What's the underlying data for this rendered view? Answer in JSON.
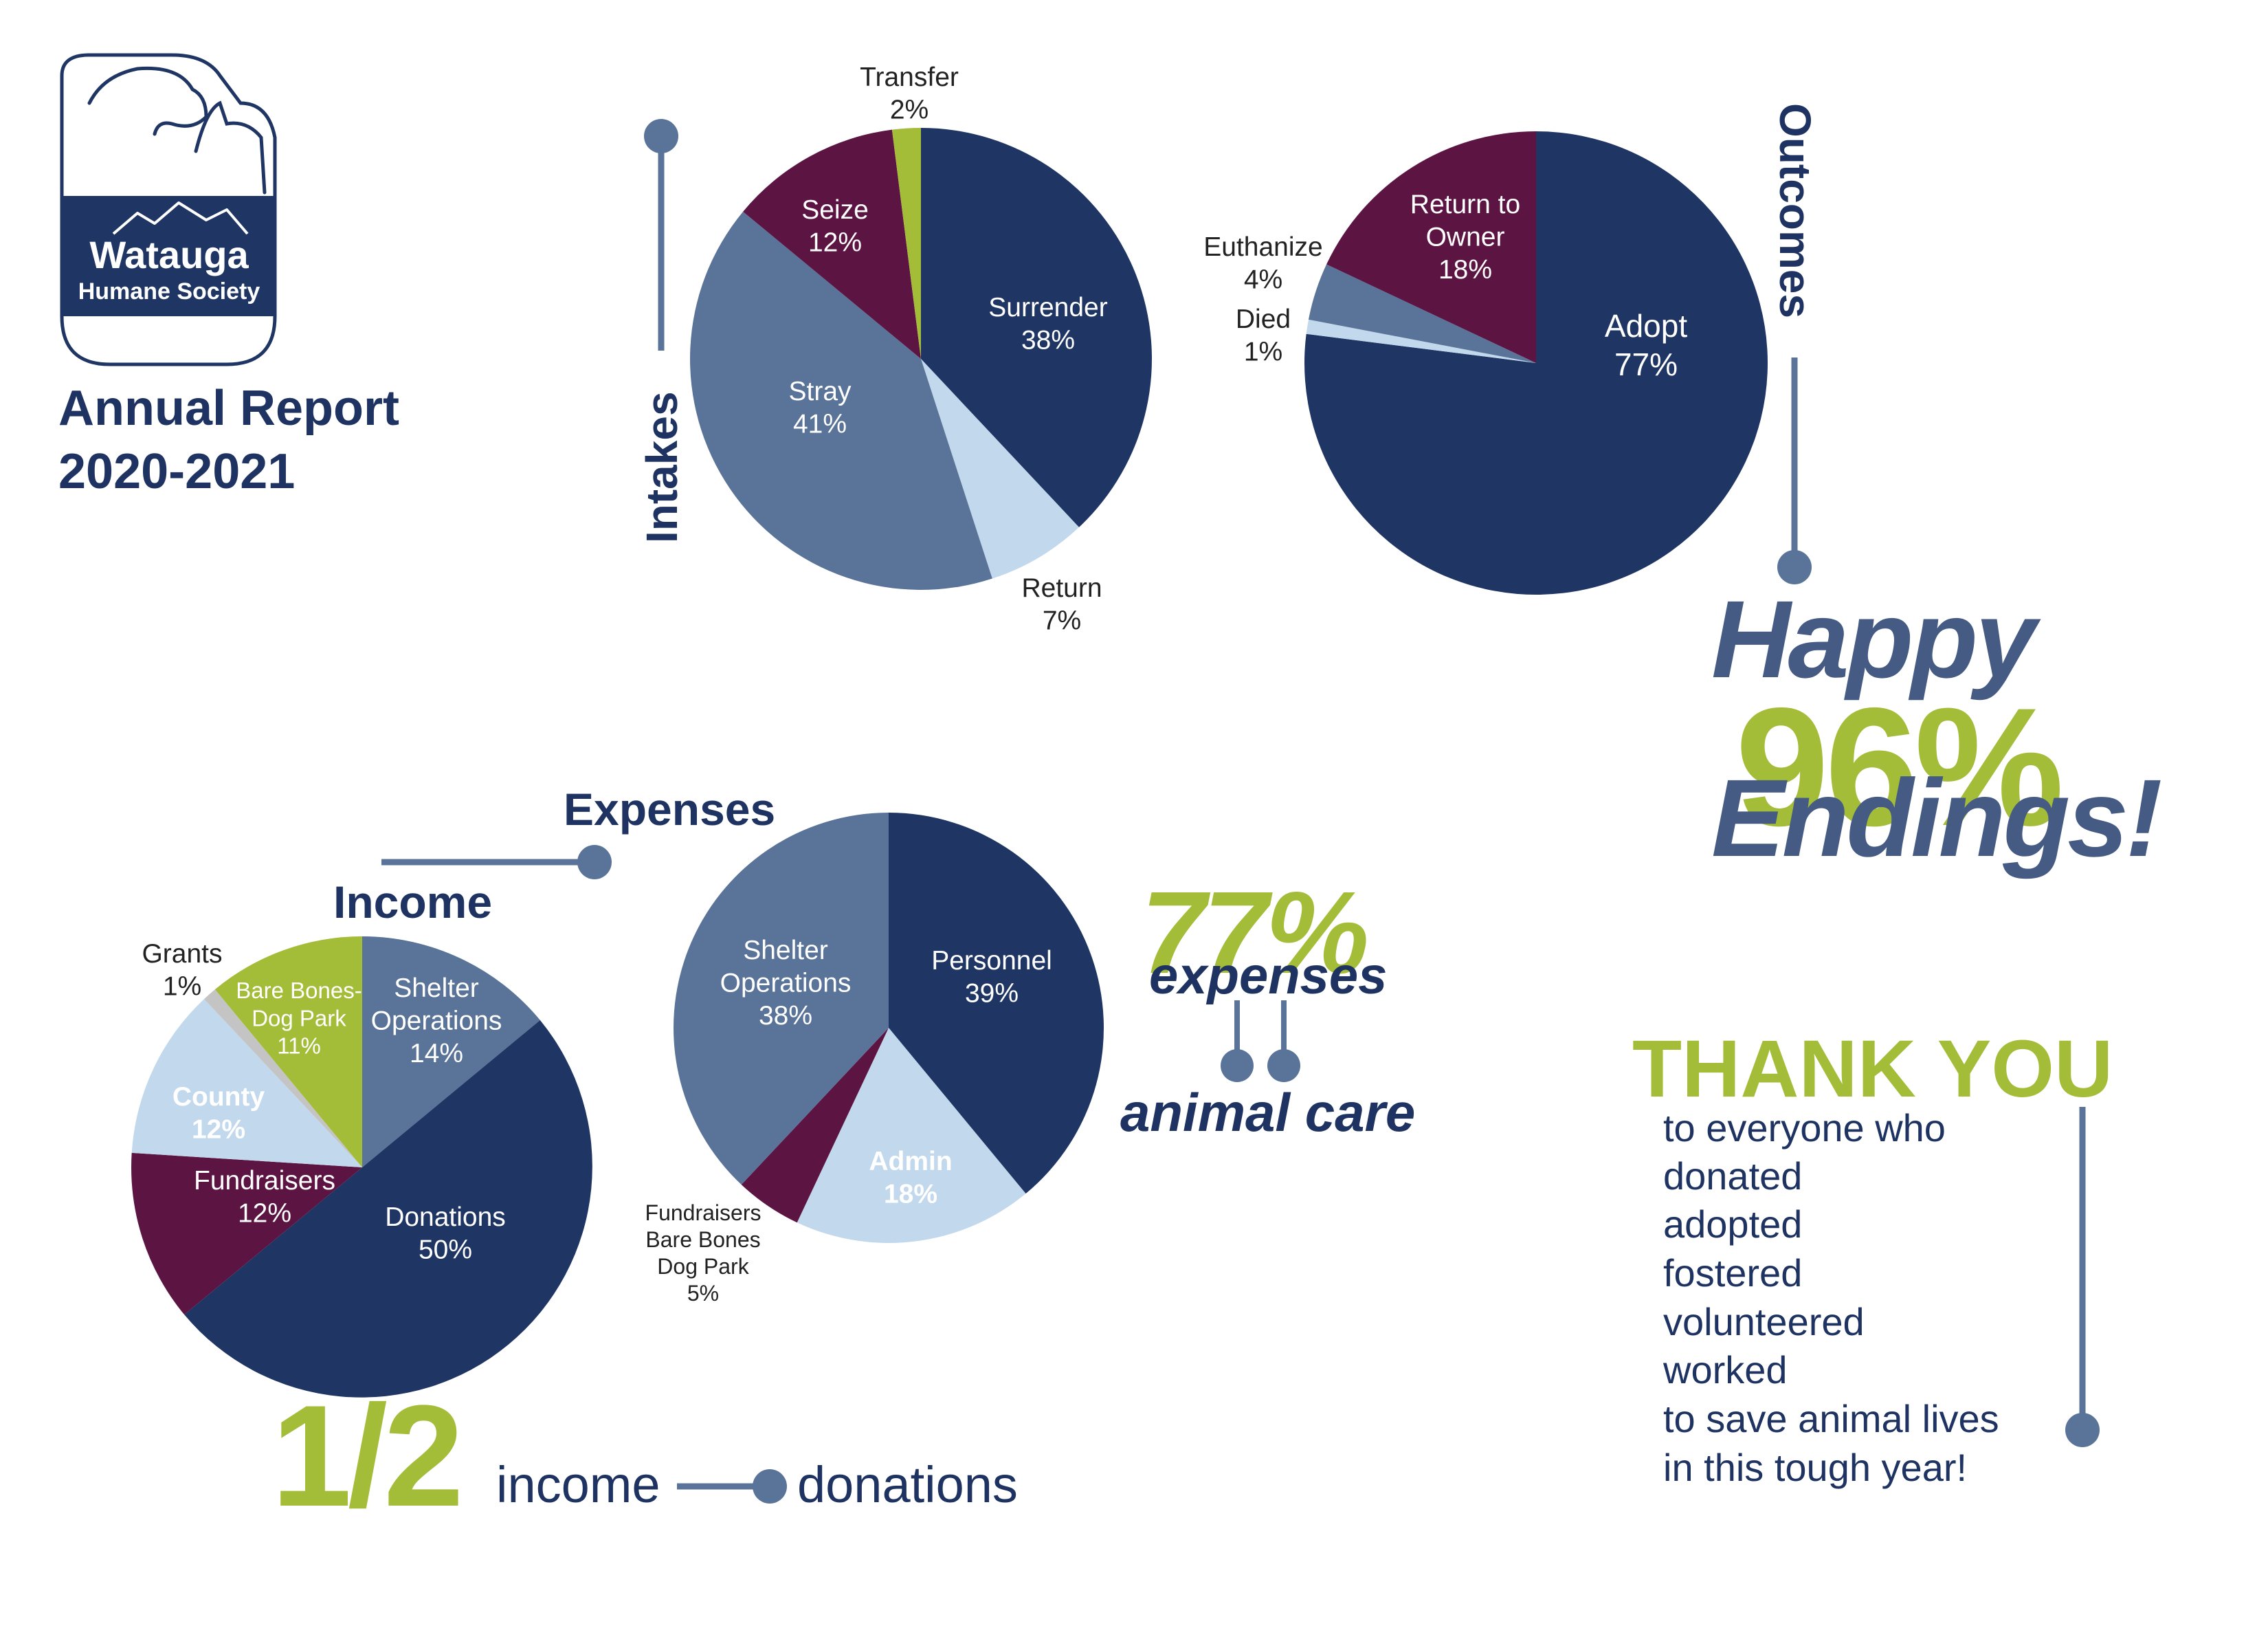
{
  "colors": {
    "navy": "#1f3564",
    "slate": "#5a7398",
    "light": "#c2d8ec",
    "maroon": "#5c1443",
    "green": "#a4bd38",
    "gray": "#c4c4c4",
    "line": "#5a7398"
  },
  "logo": {
    "line1": "Watauga",
    "line2": "Humane Society"
  },
  "report": {
    "line1": "Annual Report",
    "line2": "2020-2021"
  },
  "highlights": {
    "happy": "Happy",
    "pct96": "96%",
    "endings": "Endings!",
    "pct77": "77%",
    "expenses": "expenses",
    "animal_care": "animal care",
    "half": "1/2",
    "income": "income",
    "donations": "donations"
  },
  "thank_you": {
    "title": "THANK YOU",
    "lines": [
      "to everyone who",
      "donated",
      "adopted",
      "fostered",
      "volunteered",
      "worked",
      "to save animal lives",
      "in this tough year!"
    ]
  },
  "chart_data": [
    {
      "type": "pie",
      "title": "Intakes",
      "slices": [
        {
          "name": "Surrender",
          "pct": "38%",
          "value": 38,
          "color": "#1f3564",
          "label_color": "#ffffff"
        },
        {
          "name": "Return",
          "pct": "7%",
          "value": 7,
          "color": "#c2d8ec",
          "label_color": "#222222"
        },
        {
          "name": "Stray",
          "pct": "41%",
          "value": 41,
          "color": "#5a7398",
          "label_color": "#ffffff"
        },
        {
          "name": "Seize",
          "pct": "12%",
          "value": 12,
          "color": "#5c1443",
          "label_color": "#ffffff"
        },
        {
          "name": "Transfer",
          "pct": "2%",
          "value": 2,
          "color": "#a4bd38",
          "label_color": "#222222"
        }
      ]
    },
    {
      "type": "pie",
      "title": "Outcomes",
      "slices": [
        {
          "name": "Adopt",
          "pct": "77%",
          "value": 77,
          "color": "#1f3564",
          "label_color": "#ffffff"
        },
        {
          "name": "Died",
          "pct": "1%",
          "value": 1,
          "color": "#c2d8ec",
          "label_color": "#222222"
        },
        {
          "name": "Euthanize",
          "pct": "4%",
          "value": 4,
          "color": "#5a7398",
          "label_color": "#222222"
        },
        {
          "name": "Return to Owner",
          "pct": "18%",
          "value": 18,
          "color": "#5c1443",
          "label_color": "#ffffff"
        }
      ]
    },
    {
      "type": "pie",
      "title": "Income",
      "slices": [
        {
          "name": "Shelter Operations",
          "pct": "14%",
          "value": 14,
          "color": "#5a7398",
          "label_color": "#ffffff"
        },
        {
          "name": "Donations",
          "pct": "50%",
          "value": 50,
          "color": "#1f3564",
          "label_color": "#ffffff"
        },
        {
          "name": "Fundraisers",
          "pct": "12%",
          "value": 12,
          "color": "#5c1443",
          "label_color": "#ffffff"
        },
        {
          "name": "County",
          "pct": "12%",
          "value": 12,
          "color": "#c2d8ec",
          "label_color": "#ffffff"
        },
        {
          "name": "Grants",
          "pct": "1%",
          "value": 1,
          "color": "#c4c4c4",
          "label_color": "#222222"
        },
        {
          "name": "Bare Bones-Dog Park",
          "pct": "11%",
          "value": 11,
          "color": "#a4bd38",
          "label_color": "#ffffff"
        }
      ]
    },
    {
      "type": "pie",
      "title": "Expenses",
      "slices": [
        {
          "name": "Personnel",
          "pct": "39%",
          "value": 39,
          "color": "#1f3564",
          "label_color": "#ffffff"
        },
        {
          "name": "Admin",
          "pct": "18%",
          "value": 18,
          "color": "#c2d8ec",
          "label_color": "#ffffff"
        },
        {
          "name": "Fundraisers Bare Bones Dog Park",
          "pct": "5%",
          "value": 5,
          "color": "#5c1443",
          "label_color": "#222222"
        },
        {
          "name": "Shelter Operations",
          "pct": "38%",
          "value": 38,
          "color": "#5a7398",
          "label_color": "#ffffff"
        }
      ]
    }
  ]
}
